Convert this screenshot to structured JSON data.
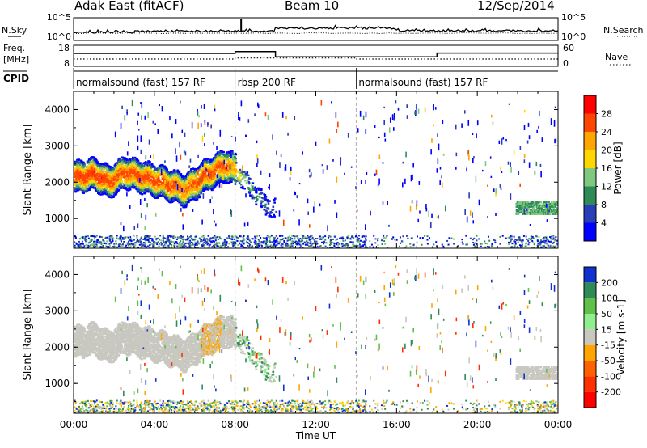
{
  "header": {
    "station": "Adak East (fitACF)",
    "beam": "Beam 10",
    "date": "12/Sep/2014"
  },
  "labels": {
    "nsky": "N.Sky",
    "nsearch": "N.Search",
    "freq_top": "Freq.",
    "freq_unit": "[MHz]",
    "nave": "Nave",
    "cpid": "CPID",
    "time_axis": "Time UT"
  },
  "cpid_segments": [
    {
      "start": 0,
      "end": 8,
      "label": "normalsound (fast) 157 RF"
    },
    {
      "start": 8,
      "end": 14,
      "label": "rbsp 200 RF"
    },
    {
      "start": 14,
      "end": 24,
      "label": "normalsound (fast) 157 RF"
    }
  ],
  "colors": {
    "background": "#ffffff",
    "axis": "#000000",
    "ground_scatter": "#c8c8c0",
    "divider": "#aaaaaa"
  },
  "chart_data": [
    {
      "type": "line",
      "panel": "noise",
      "left_ticks": [
        "10^5",
        "10^0"
      ],
      "right_ticks": [
        "10^5",
        "10^0"
      ],
      "left_series": "N.Sky",
      "right_series": "N.Search"
    },
    {
      "type": "line",
      "panel": "frequency_nave",
      "left_ticks": [
        "18",
        "8"
      ],
      "right_ticks": [
        "60",
        "0"
      ],
      "series": [
        {
          "name": "Freq.",
          "x": [
            0,
            8,
            8,
            10,
            10,
            18,
            18,
            24
          ],
          "y": [
            14.5,
            14.5,
            15.6,
            15.6,
            12.4,
            12.4,
            14.7,
            14.7
          ]
        },
        {
          "name": "Nave",
          "x": [
            0,
            8,
            8,
            14,
            14,
            24
          ],
          "y": [
            18,
            18,
            22,
            22,
            18,
            18
          ]
        }
      ]
    },
    {
      "type": "heatmap",
      "panel": "power",
      "ylabel": "Slant Range [km]",
      "xlim": [
        0,
        24
      ],
      "ylim": [
        180,
        4500
      ],
      "yticks": [
        1000,
        2000,
        3000,
        4000
      ],
      "colorbar_label": "Power [dB]",
      "colorbar_ticks": [
        4,
        8,
        12,
        16,
        20,
        24,
        28
      ],
      "colorbar_colors": [
        "#0000ff",
        "#2a3db8",
        "#2e8b57",
        "#7fc87f",
        "#ffd700",
        "#ffa500",
        "#ff4500",
        "#ff0000"
      ],
      "echo_band": {
        "x": [
          0,
          1,
          1.7,
          2.5,
          3.5,
          4.5,
          5.5,
          6.5,
          7.5,
          8,
          9,
          9.5,
          10
        ],
        "center_km": [
          2150,
          2250,
          2020,
          2300,
          2150,
          2000,
          1800,
          2200,
          2500,
          2350,
          1700,
          1400,
          1250
        ],
        "peak_db": [
          26,
          27,
          26,
          25,
          26,
          26,
          24,
          26,
          25,
          20,
          10,
          8,
          6
        ]
      },
      "late_band": {
        "x": [
          21.9,
          24
        ],
        "range_km": [
          1150,
          1500
        ],
        "peak_db": 12
      }
    },
    {
      "type": "heatmap",
      "panel": "velocity",
      "ylabel": "Slant Range [km]",
      "xlabel": "Time UT",
      "xlim": [
        0,
        24
      ],
      "ylim": [
        180,
        4500
      ],
      "yticks": [
        1000,
        2000,
        3000,
        4000
      ],
      "xticks": [
        "00:00",
        "04:00",
        "08:00",
        "12:00",
        "16:00",
        "20:00",
        "00:00"
      ],
      "colorbar_label": "Velocity [m s-1]",
      "colorbar_ticks": [
        200,
        100,
        50,
        15,
        -15,
        -50,
        -100,
        -200
      ],
      "colorbar_colors": [
        "#1030d0",
        "#2e8b57",
        "#5fc04a",
        "#90ee90",
        "#c8c8c0",
        "#ffa500",
        "#ff6000",
        "#ff3000",
        "#ff0000"
      ]
    }
  ]
}
